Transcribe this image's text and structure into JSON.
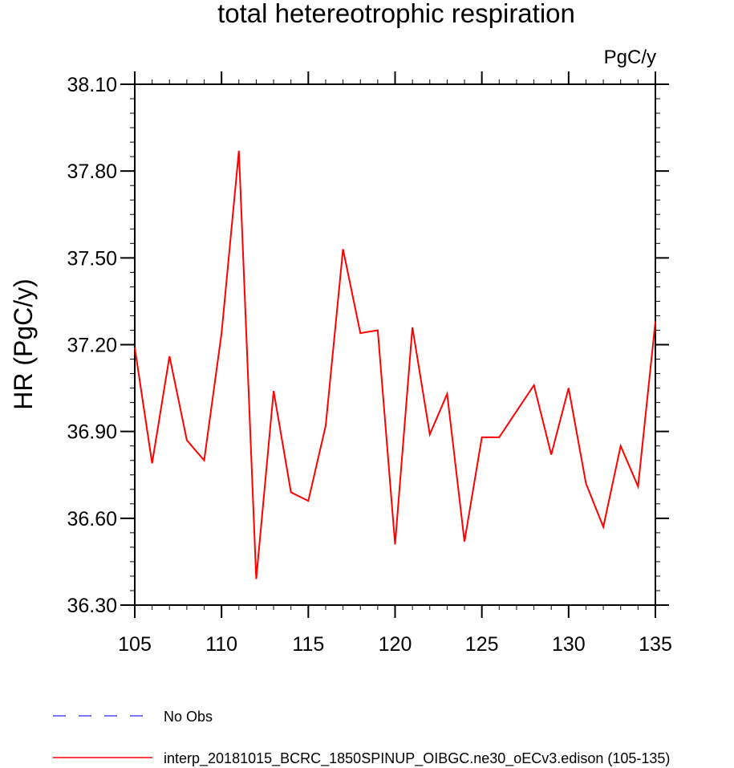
{
  "chart_data": {
    "type": "line",
    "title": "total hetereotrophic respiration",
    "units_label": "PgC/y",
    "ylabel": "HR  (PgC/y)",
    "xlabel": "",
    "xlim": [
      105,
      135
    ],
    "ylim": [
      36.3,
      38.1
    ],
    "x_ticks": [
      105,
      110,
      115,
      120,
      125,
      130,
      135
    ],
    "x_tick_labels": [
      "105",
      "110",
      "115",
      "120",
      "125",
      "130",
      "135"
    ],
    "y_ticks": [
      36.3,
      36.6,
      36.9,
      37.2,
      37.5,
      37.8,
      38.1
    ],
    "y_tick_labels": [
      "36.30",
      "36.60",
      "36.90",
      "37.20",
      "37.50",
      "37.80",
      "38.10"
    ],
    "series": [
      {
        "name": "interp_20181015_BCRC_1850SPINUP_OIBGC.ne30_oECv3.edison (105-135)",
        "color": "#ff0000",
        "dash": "solid",
        "x": [
          105,
          106,
          107,
          108,
          109,
          110,
          111,
          112,
          113,
          114,
          115,
          116,
          117,
          118,
          119,
          120,
          121,
          122,
          123,
          124,
          125,
          126,
          127,
          128,
          129,
          130,
          131,
          132,
          133,
          134,
          135
        ],
        "y": [
          37.19,
          36.79,
          37.16,
          36.87,
          36.8,
          37.24,
          37.87,
          36.39,
          37.04,
          36.69,
          36.66,
          36.92,
          37.53,
          37.24,
          37.25,
          36.51,
          37.26,
          36.89,
          37.03,
          36.52,
          36.88,
          36.88,
          36.97,
          37.06,
          36.82,
          37.05,
          36.72,
          36.57,
          36.85,
          36.71,
          37.28
        ]
      }
    ],
    "legend": [
      {
        "label": "No Obs",
        "color": "#4a4aff",
        "dash": "dashed"
      },
      {
        "label": "interp_20181015_BCRC_1850SPINUP_OIBGC.ne30_oECv3.edison (105-135)",
        "color": "#ff0000",
        "dash": "solid"
      }
    ],
    "legend_placement": "bottom",
    "grid": false
  }
}
